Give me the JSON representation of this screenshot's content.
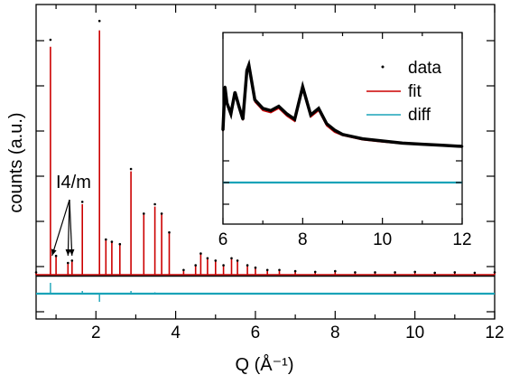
{
  "chart_data": [
    {
      "type": "line",
      "xlabel": "Q (Å⁻¹)",
      "ylabel": "counts (a.u.)",
      "xlim": [
        0.5,
        12
      ],
      "x_ticks": [
        2,
        4,
        6,
        8,
        10,
        12
      ],
      "y_tick_labels": false,
      "annotation": "I4/m",
      "annotation_targets": [
        0.9,
        1.3,
        1.4
      ],
      "series": [
        {
          "name": "data",
          "color": "#000000",
          "marker": "dot",
          "x": [
            0.5,
            0.86,
            1.0,
            1.3,
            1.4,
            1.66,
            2.09,
            2.25,
            2.4,
            2.6,
            2.88,
            3.2,
            3.48,
            3.65,
            3.84,
            4.2,
            4.5,
            4.63,
            4.8,
            5.0,
            5.2,
            5.4,
            5.55,
            5.8,
            6.0,
            6.3,
            6.6,
            7.0,
            7.5,
            8.0,
            8.5,
            9.0,
            9.5,
            10.0,
            10.5,
            11.0,
            11.5,
            12.0
          ],
          "y": [
            1,
            100,
            8,
            5,
            6,
            31,
            108,
            15,
            14,
            13,
            45,
            26,
            30,
            26,
            18,
            2,
            4,
            9,
            7,
            6,
            4,
            7,
            6,
            4,
            3,
            2,
            2,
            1.5,
            1.2,
            1.5,
            1,
            1,
            1,
            1.2,
            0.8,
            1,
            0.8,
            1
          ]
        },
        {
          "name": "fit",
          "color": "#cc0000",
          "x": [
            0.5,
            0.86,
            1.0,
            1.3,
            1.4,
            1.66,
            2.09,
            2.25,
            2.4,
            2.6,
            2.88,
            3.2,
            3.48,
            3.65,
            3.84,
            4.2,
            4.5,
            4.63,
            4.8,
            5.0,
            5.2,
            5.4,
            5.55,
            5.8,
            6.0,
            6.3,
            6.6,
            7.0,
            7.5,
            8.0,
            8.5,
            9.0,
            9.5,
            10.0,
            10.5,
            11.0,
            11.5,
            12.0
          ],
          "y": [
            1,
            97,
            8,
            5,
            6,
            30,
            104,
            15,
            14,
            13,
            44,
            26,
            29,
            26,
            18,
            2,
            4,
            9,
            7,
            6,
            4,
            7,
            6,
            4,
            3,
            2,
            2,
            1.5,
            1.2,
            1.5,
            1,
            1,
            1,
            1.2,
            0.8,
            1,
            0.8,
            1
          ]
        },
        {
          "name": "diff",
          "color": "#1aa3b8",
          "x": [
            0.5,
            0.86,
            1.66,
            2.09,
            2.88,
            3.48,
            4.0,
            6.0,
            8.0,
            10.0,
            12.0
          ],
          "y": [
            0,
            4,
            1,
            -3,
            1,
            0.5,
            0,
            0,
            0,
            0,
            0
          ]
        }
      ]
    },
    {
      "type": "line",
      "xlim": [
        6,
        12
      ],
      "x_ticks": [
        6,
        8,
        10,
        12
      ],
      "legend_position": "top-right",
      "series": [
        {
          "name": "data",
          "color": "#000000",
          "marker": "dot",
          "x": [
            6.0,
            6.05,
            6.1,
            6.2,
            6.3,
            6.4,
            6.5,
            6.6,
            6.65,
            6.8,
            7.0,
            7.2,
            7.4,
            7.6,
            7.8,
            8.0,
            8.2,
            8.4,
            8.6,
            8.8,
            9.0,
            9.5,
            10.0,
            10.5,
            11.0,
            11.5,
            12.0
          ],
          "y": [
            20,
            60,
            45,
            35,
            55,
            42,
            30,
            75,
            80,
            48,
            40,
            38,
            42,
            35,
            30,
            60,
            34,
            40,
            26,
            20,
            16,
            12,
            10,
            8,
            7,
            6,
            5
          ]
        },
        {
          "name": "fit",
          "color": "#cc0000",
          "x": [
            6.0,
            6.05,
            6.1,
            6.2,
            6.3,
            6.4,
            6.5,
            6.6,
            6.65,
            6.8,
            7.0,
            7.2,
            7.4,
            7.6,
            7.8,
            8.0,
            8.2,
            8.4,
            8.6,
            8.8,
            9.0,
            9.5,
            10.0,
            10.5,
            11.0,
            11.5,
            12.0
          ],
          "y": [
            19,
            58,
            43,
            33,
            53,
            40,
            29,
            72,
            77,
            46,
            38,
            36,
            40,
            33,
            28,
            57,
            32,
            38,
            24,
            18,
            15,
            11,
            9,
            7.5,
            6.5,
            5.5,
            4.5
          ]
        },
        {
          "name": "diff",
          "color": "#1aa3b8",
          "x": [
            6.0,
            7.0,
            8.0,
            9.0,
            10.0,
            11.0,
            12.0
          ],
          "y": [
            0,
            0,
            0,
            0,
            0,
            0,
            0
          ]
        }
      ]
    }
  ]
}
